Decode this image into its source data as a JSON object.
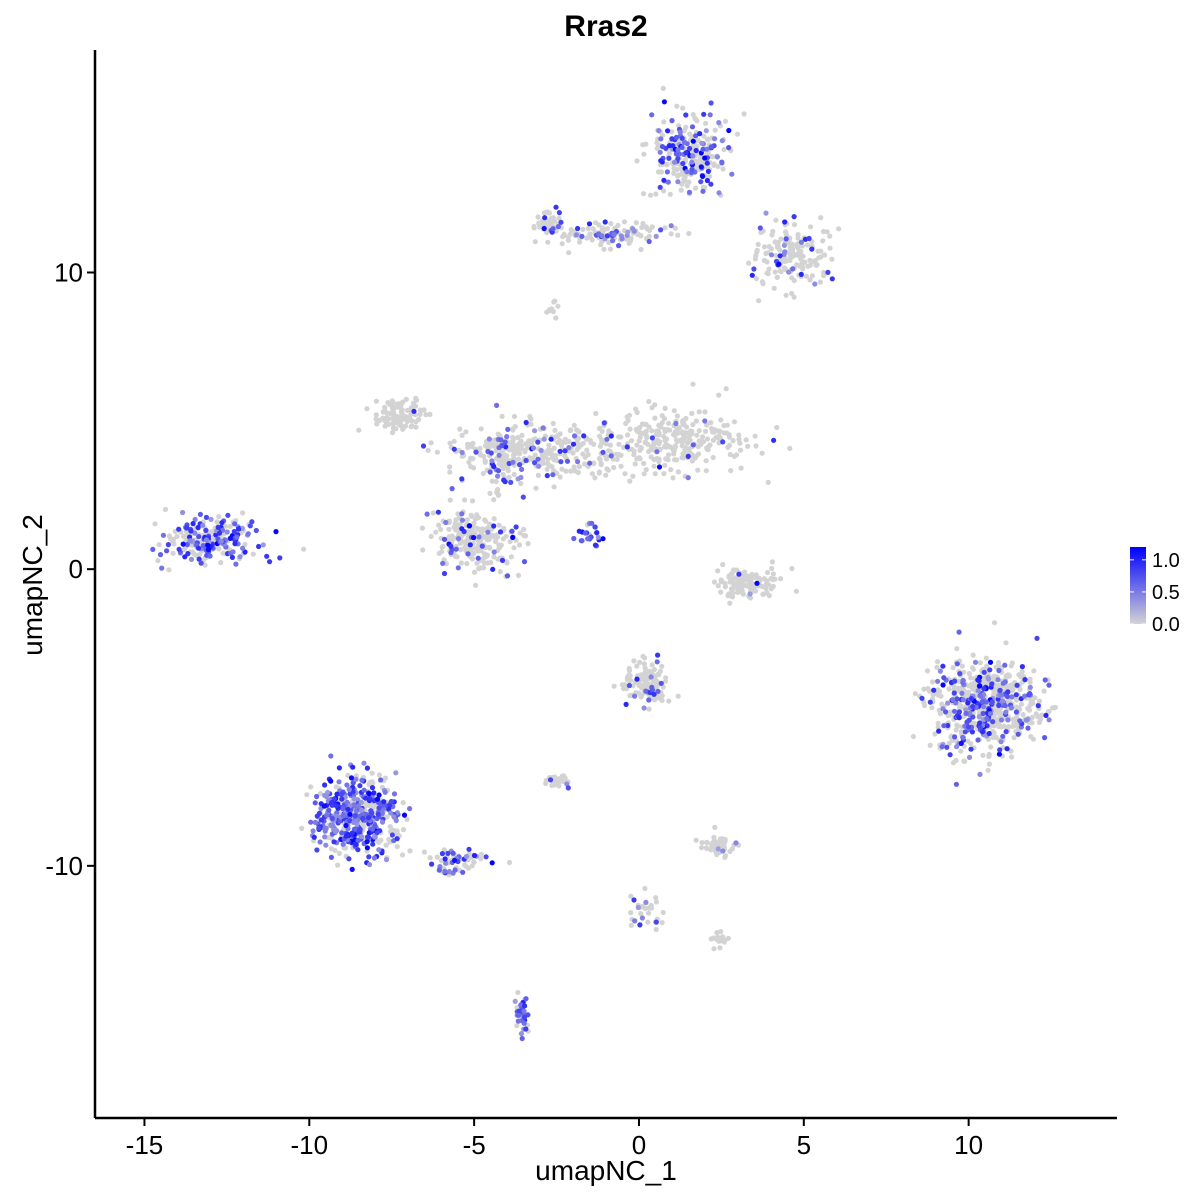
{
  "chart_data": {
    "type": "scatter",
    "title": "Rras2",
    "xlabel": "umapNC_1",
    "ylabel": "umapNC_2",
    "xlim": [
      -16.5,
      14.5
    ],
    "ylim": [
      -18.5,
      17.5
    ],
    "x_ticks": [
      -15,
      -10,
      -5,
      0,
      5,
      10
    ],
    "x_tick_labels": [
      "-15",
      "-10",
      "-5",
      "0",
      "5",
      "10"
    ],
    "y_ticks": [
      -10,
      0,
      10
    ],
    "y_tick_labels": [
      "-10",
      "0",
      "10"
    ],
    "grid": false,
    "legend_position": "right",
    "colorbar": {
      "min": 0.0,
      "max": 1.2,
      "ticks": [
        0.0,
        0.5,
        1.0
      ],
      "tick_labels": [
        "0.0",
        "0.5",
        "1.0"
      ],
      "color_low": "#d3d3d3",
      "color_high": "#0000ff"
    },
    "point_color_low": "#d3d3d3",
    "point_color_high": "#0000ff",
    "clusters": [
      {
        "name": "top-right",
        "cx": 1.5,
        "cy": 14.0,
        "sx": 1.0,
        "sy": 1.1,
        "n": 260,
        "expr": 0.35
      },
      {
        "name": "top-arm",
        "cx": -1.0,
        "cy": 11.3,
        "sx": 1.6,
        "sy": 0.35,
        "n": 120,
        "expr": 0.25
      },
      {
        "name": "top-right-tail",
        "cx": 4.6,
        "cy": 10.5,
        "sx": 1.0,
        "sy": 1.0,
        "n": 170,
        "expr": 0.15
      },
      {
        "name": "top-left-head",
        "cx": -2.7,
        "cy": 11.6,
        "sx": 0.3,
        "sy": 0.4,
        "n": 40,
        "expr": 0.15
      },
      {
        "name": "hub",
        "cx": -3.0,
        "cy": 4.0,
        "sx": 2.4,
        "sy": 0.8,
        "n": 300,
        "expr": 0.08
      },
      {
        "name": "hub-right",
        "cx": 1.2,
        "cy": 4.3,
        "sx": 2.0,
        "sy": 0.9,
        "n": 260,
        "expr": 0.03
      },
      {
        "name": "hub-leftarm",
        "cx": -7.2,
        "cy": 5.2,
        "sx": 0.7,
        "sy": 0.5,
        "n": 90,
        "expr": 0.03
      },
      {
        "name": "hub-lower",
        "cx": -5.0,
        "cy": 1.0,
        "sx": 1.1,
        "sy": 0.9,
        "n": 250,
        "expr": 0.15
      },
      {
        "name": "hub-center",
        "cx": -4.1,
        "cy": 3.8,
        "sx": 0.5,
        "sy": 1.0,
        "n": 80,
        "expr": 0.35
      },
      {
        "name": "left-island",
        "cx": -13.0,
        "cy": 1.0,
        "sx": 1.1,
        "sy": 0.6,
        "n": 230,
        "expr": 0.55
      },
      {
        "name": "bottom-left",
        "cx": -8.6,
        "cy": -8.3,
        "sx": 1.0,
        "sy": 1.1,
        "n": 520,
        "expr": 0.6
      },
      {
        "name": "bottom-left-tail",
        "cx": -5.5,
        "cy": -9.8,
        "sx": 1.0,
        "sy": 0.35,
        "n": 60,
        "expr": 0.45
      },
      {
        "name": "mid-bottom",
        "cx": 0.2,
        "cy": -3.8,
        "sx": 0.6,
        "sy": 0.6,
        "n": 120,
        "expr": 0.1
      },
      {
        "name": "mid-ring",
        "cx": 3.3,
        "cy": -0.5,
        "sx": 0.9,
        "sy": 0.5,
        "n": 130,
        "expr": 0.02
      },
      {
        "name": "right-island",
        "cx": 10.5,
        "cy": -4.6,
        "sx": 1.3,
        "sy": 1.3,
        "n": 650,
        "expr": 0.3
      },
      {
        "name": "small-mid",
        "cx": 2.4,
        "cy": -9.3,
        "sx": 0.4,
        "sy": 0.3,
        "n": 50,
        "expr": 0.05
      },
      {
        "name": "small-left",
        "cx": -2.5,
        "cy": -7.1,
        "sx": 0.3,
        "sy": 0.2,
        "n": 30,
        "expr": 0.15
      },
      {
        "name": "bottom-stream",
        "cx": -3.5,
        "cy": -15.0,
        "sx": 0.2,
        "sy": 0.5,
        "n": 40,
        "expr": 0.65
      },
      {
        "name": "stream-line",
        "cx": -1.5,
        "cy": 1.2,
        "sx": 0.3,
        "sy": 0.3,
        "n": 25,
        "expr": 0.9
      },
      {
        "name": "top-small",
        "cx": -2.7,
        "cy": 8.8,
        "sx": 0.2,
        "sy": 0.2,
        "n": 10,
        "expr": 0.0
      },
      {
        "name": "bottom-center",
        "cx": 0.2,
        "cy": -11.5,
        "sx": 0.4,
        "sy": 0.6,
        "n": 30,
        "expr": 0.25
      },
      {
        "name": "bottom-center-right",
        "cx": 2.4,
        "cy": -12.5,
        "sx": 0.3,
        "sy": 0.2,
        "n": 20,
        "expr": 0.02
      }
    ]
  }
}
